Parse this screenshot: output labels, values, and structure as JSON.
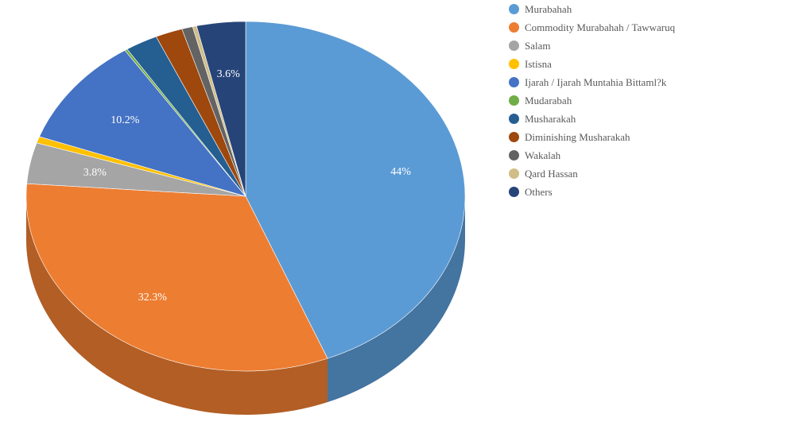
{
  "chart_data": {
    "type": "pie",
    "style": "3d",
    "title": "",
    "legend_position": "right",
    "slices": [
      {
        "label": "Murabahah",
        "value": 44.0,
        "color": "#5B9BD5",
        "display": "44%"
      },
      {
        "label": "Commodity Murabahah / Tawwaruq",
        "value": 32.3,
        "color": "#ED7D31",
        "display": "32.3%"
      },
      {
        "label": "Salam",
        "value": 3.8,
        "color": "#A5A5A5",
        "display": "3.8%"
      },
      {
        "label": "Istisna",
        "value": 0.6,
        "color": "#FFC000",
        "display": ""
      },
      {
        "label": "Ijarah / Ijarah Muntahia Bittaml?k",
        "value": 10.2,
        "color": "#4472C4",
        "display": "10.2%"
      },
      {
        "label": "Mudarabah",
        "value": 0.2,
        "color": "#70AD47",
        "display": ""
      },
      {
        "label": "Musharakah",
        "value": 2.4,
        "color": "#255E91",
        "display": ""
      },
      {
        "label": "Diminishing Musharakah",
        "value": 2.0,
        "color": "#9E480E",
        "display": ""
      },
      {
        "label": "Wakalah",
        "value": 0.8,
        "color": "#636363",
        "display": ""
      },
      {
        "label": "Qard Hassan",
        "value": 0.3,
        "color": "#D1BD88",
        "display": ""
      },
      {
        "label": "Others",
        "value": 3.6,
        "color": "#264478",
        "display": "3.6%"
      }
    ]
  }
}
